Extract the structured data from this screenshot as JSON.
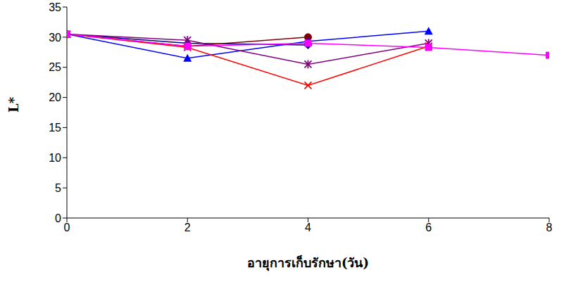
{
  "chart_data": {
    "type": "line",
    "x_label": "อายุการเก็บรักษา(วัน)",
    "y_label": "L*",
    "x": [
      0,
      2,
      4,
      6,
      8
    ],
    "xlim": [
      0,
      8
    ],
    "xticks": [
      0,
      2,
      4,
      6,
      8
    ],
    "ylim": [
      0,
      35
    ],
    "yticks": [
      0,
      5,
      10,
      15,
      20,
      25,
      30,
      35
    ],
    "grid": false,
    "series": [
      {
        "color": "#000080",
        "marker": "diamond",
        "values": [
          30.5,
          29,
          28.7,
          null,
          null
        ]
      },
      {
        "color": "#800000",
        "marker": "circle",
        "values": [
          30.5,
          28.5,
          30,
          null,
          null
        ]
      },
      {
        "color": "#0000ff",
        "marker": "triangle",
        "values": [
          30.5,
          26.5,
          29.3,
          31,
          null
        ]
      },
      {
        "color": "#ff0000",
        "marker": "x",
        "values": [
          30.5,
          28.3,
          22,
          28.5,
          null
        ]
      },
      {
        "color": "#800080",
        "marker": "asterisk",
        "values": [
          30.5,
          29.5,
          25.5,
          29,
          null
        ]
      },
      {
        "color": "#ff00ff",
        "marker": "square",
        "values": [
          30.5,
          28.5,
          29,
          28.3,
          27
        ]
      }
    ]
  }
}
